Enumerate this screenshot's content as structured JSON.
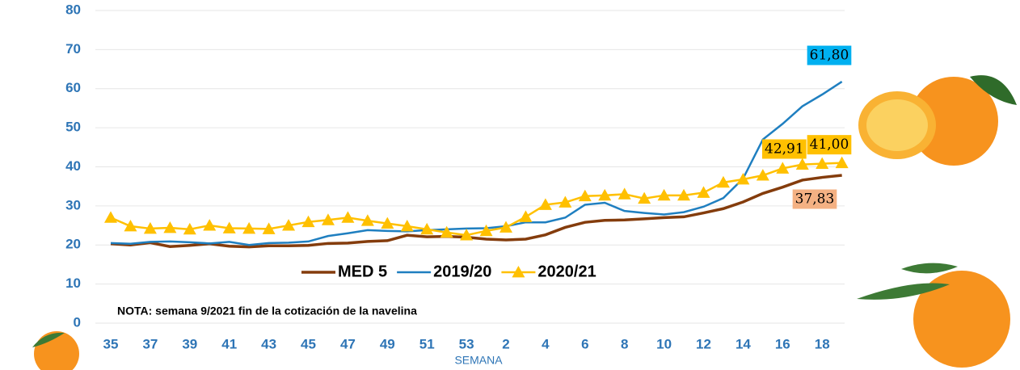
{
  "chart_data": {
    "type": "line",
    "categories": [
      "35",
      null,
      "37",
      null,
      "39",
      null,
      "41",
      null,
      "43",
      null,
      "45",
      null,
      "47",
      null,
      "49",
      null,
      "51",
      null,
      "53",
      null,
      "2",
      null,
      "4",
      null,
      "6",
      null,
      "8",
      null,
      "10",
      null,
      "12",
      null,
      "14",
      null,
      "16",
      null,
      "18",
      null
    ],
    "xlabel": "SEMANA",
    "series": [
      {
        "name": "MED 5",
        "color": "#843c0c",
        "marker": "none",
        "values": [
          20.3,
          20.0,
          20.6,
          19.6,
          19.9,
          20.3,
          19.7,
          19.5,
          19.8,
          19.8,
          19.9,
          20.4,
          20.5,
          20.9,
          21.1,
          22.5,
          22.1,
          22.2,
          22.0,
          21.5,
          21.3,
          21.5,
          22.6,
          24.5,
          25.8,
          26.3,
          26.4,
          26.7,
          27.0,
          27.2,
          28.2,
          29.3,
          31.0,
          33.2,
          34.8,
          36.6,
          37.3,
          37.83
        ],
        "value_labels": [
          null,
          null,
          null,
          null,
          null,
          null,
          null,
          null,
          null,
          null,
          null,
          null,
          null,
          null,
          null,
          null,
          null,
          null,
          null,
          null,
          null,
          null,
          null,
          null,
          null,
          null,
          null,
          null,
          null,
          null,
          null,
          null,
          null,
          null,
          null,
          null,
          null,
          "37,83"
        ]
      },
      {
        "name": "2019/20",
        "color": "#1f7fc0",
        "marker": "none",
        "values": [
          20.5,
          20.3,
          20.8,
          20.9,
          20.7,
          20.4,
          20.8,
          20.0,
          20.5,
          20.6,
          20.9,
          22.3,
          23.0,
          23.8,
          23.6,
          23.5,
          23.8,
          24.0,
          24.2,
          24.3,
          24.8,
          25.8,
          25.8,
          27.0,
          30.3,
          30.8,
          28.7,
          28.2,
          27.8,
          28.4,
          29.8,
          32.0,
          37.0,
          47.0,
          51.0,
          55.5,
          58.5,
          61.8
        ],
        "value_labels": [
          null,
          null,
          null,
          null,
          null,
          null,
          null,
          null,
          null,
          null,
          null,
          null,
          null,
          null,
          null,
          null,
          null,
          null,
          null,
          null,
          null,
          null,
          null,
          null,
          null,
          null,
          null,
          null,
          null,
          null,
          null,
          null,
          null,
          null,
          null,
          null,
          null,
          "61,80"
        ]
      },
      {
        "name": "2020/21",
        "color": "#ffc000",
        "marker": "triangle",
        "values": [
          27.0,
          24.8,
          24.2,
          24.4,
          24.0,
          25.0,
          24.3,
          24.2,
          24.1,
          25.0,
          25.9,
          26.4,
          27.0,
          26.2,
          25.5,
          24.8,
          24.0,
          23.2,
          22.5,
          23.6,
          24.5,
          27.2,
          30.3,
          30.9,
          32.5,
          32.7,
          33.0,
          31.9,
          32.7,
          32.7,
          33.4,
          36.0,
          36.8,
          37.8,
          39.6,
          40.6,
          40.8,
          41.0
        ],
        "value_labels": [
          null,
          null,
          null,
          null,
          null,
          null,
          null,
          null,
          null,
          null,
          null,
          null,
          null,
          null,
          null,
          null,
          null,
          null,
          null,
          null,
          null,
          null,
          null,
          null,
          null,
          null,
          null,
          null,
          null,
          null,
          null,
          null,
          null,
          null,
          null,
          null,
          null,
          "41,00"
        ]
      }
    ],
    "annotations": [
      "42,91",
      "NOTA: semana 9/2021 fin de la cotización de la navelina"
    ],
    "ylim": [
      0,
      80
    ],
    "yticks": [
      0,
      10,
      20,
      30,
      40,
      50,
      60,
      70,
      80
    ],
    "grid": true,
    "legend": "center"
  }
}
